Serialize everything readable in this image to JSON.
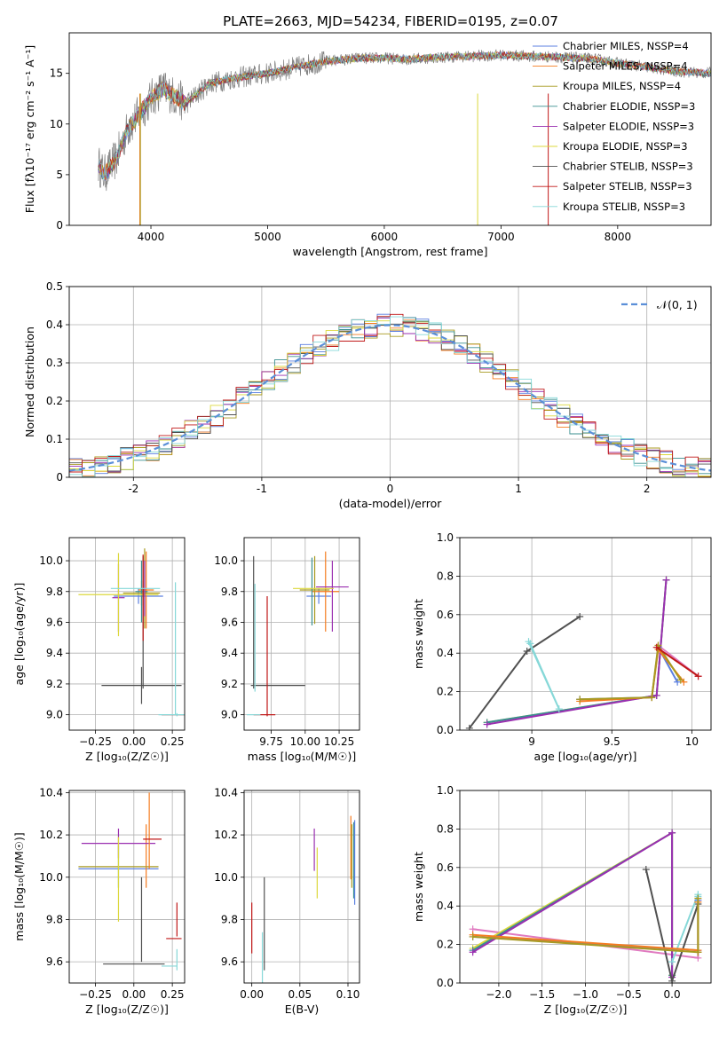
{
  "figure_title": "PLATE=2663, MJD=54234, FIBERID=0195, z=0.07",
  "colors": {
    "Chabrier MILES": "#5b7fe0",
    "Salpeter MILES": "#f57c20",
    "Kroupa MILES": "#a89a20",
    "Chabrier ELODIE": "#3a8f8f",
    "Salpeter ELODIE": "#9a2fb0",
    "Kroupa ELODIE": "#dcd83c",
    "Chabrier STELIB": "#505050",
    "Salpeter STELIB": "#c01818",
    "Kroupa STELIB": "#86d8d8",
    "grid": "#b0b0b0",
    "gauss": "#5b8fd8"
  },
  "chart_data": [
    {
      "id": "spectrum",
      "type": "line",
      "xlabel": "wavelength [Angstrom, rest frame]",
      "ylabel": "Flux [fλ10⁻¹⁷ erg cm⁻² s⁻¹ A⁻¹]",
      "xlim": [
        3300,
        8800
      ],
      "ylim": [
        0,
        19
      ],
      "xticks": [
        4000,
        5000,
        6000,
        7000,
        8000
      ],
      "yticks": [
        0,
        5,
        10,
        15
      ],
      "grid": false,
      "legend_position": "right",
      "legend": [
        "Chabrier MILES, NSSP=4",
        "Salpeter MILES, NSSP=4",
        "Kroupa MILES, NSSP=4",
        "Chabrier ELODIE, NSSP=3",
        "Salpeter ELODIE, NSSP=3",
        "Kroupa ELODIE, NSSP=3",
        "Chabrier STELIB, NSSP=3",
        "Salpeter STELIB, NSSP=3",
        "Kroupa STELIB, NSSP=3"
      ],
      "data_x": [
        3550,
        3600,
        3700,
        3800,
        3900,
        4000,
        4100,
        4300,
        4500,
        4700,
        5000,
        5200,
        5500,
        5800,
        6000,
        6200,
        6500,
        6800,
        7000,
        7200,
        7500,
        7800,
        8000,
        8200,
        8500,
        8800
      ],
      "data_y": [
        6.0,
        5.0,
        6.5,
        9.5,
        11.0,
        12.5,
        13.5,
        12.0,
        14.0,
        14.5,
        15.0,
        15.5,
        16.2,
        16.5,
        16.5,
        16.4,
        16.6,
        16.7,
        16.8,
        16.7,
        16.6,
        16.4,
        16.0,
        15.7,
        15.2,
        15.0
      ],
      "drops": [
        {
          "model": "Salpeter MILES",
          "x": 3905
        },
        {
          "model": "Kroupa MILES",
          "x": 3910
        },
        {
          "model": "Kroupa ELODIE",
          "x": 6800
        },
        {
          "model": "Salpeter STELIB",
          "x": 7405
        }
      ]
    },
    {
      "id": "residuals",
      "type": "line",
      "xlabel": "(data-model)/error",
      "ylabel": "Normed distribution",
      "xlim": [
        -2.5,
        2.5
      ],
      "ylim": [
        0,
        0.5
      ],
      "xticks": [
        -2,
        -1,
        0,
        1,
        2
      ],
      "yticks": [
        0.0,
        0.1,
        0.2,
        0.3,
        0.4,
        0.5
      ],
      "grid": true,
      "legend_position": "top-right",
      "legend": [
        "𝒩(0, 1)"
      ],
      "bin_width": 0.1
    },
    {
      "id": "age-z",
      "type": "scatter",
      "xlabel": "Z [log₁₀(Z/Z☉)]",
      "ylabel": "age  [log₁₀(age/yr)]",
      "xlim": [
        -0.42,
        0.33
      ],
      "ylim": [
        8.9,
        10.15
      ],
      "xticks": [
        -0.25,
        0.0,
        0.25
      ],
      "xtick_labels": [
        "−0.25",
        "0.00",
        "0.25"
      ],
      "yticks": [
        9.0,
        9.2,
        9.4,
        9.6,
        9.8,
        10.0
      ],
      "grid": true,
      "points": [
        {
          "model": "Chabrier MILES",
          "x": 0.03,
          "xerr": 0.16,
          "y": 9.77,
          "yerr": 0.05
        },
        {
          "model": "Salpeter MILES",
          "x": 0.08,
          "xerr": 0.05,
          "y": 9.81,
          "yerr": 0.25
        },
        {
          "model": "Kroupa MILES",
          "x": 0.05,
          "xerr": 0.12,
          "y": 9.79,
          "yerr": 0.08
        },
        {
          "model": "Chabrier ELODIE",
          "x": 0.05,
          "xerr": 0.04,
          "y": 9.8,
          "yerr": 0.2
        },
        {
          "model": "Salpeter ELODIE",
          "x": -0.1,
          "xerr": 0.04,
          "y": 9.76,
          "yerr": 0.22
        },
        {
          "model": "Kroupa ELODIE",
          "x": -0.1,
          "xerr": 0.26,
          "y": 9.78,
          "yerr": 0.27
        },
        {
          "model": "Chabrier STELIB",
          "x": 0.05,
          "xerr": 0.26,
          "y": 9.19,
          "yerr": 0.12
        },
        {
          "model": "Salpeter STELIB",
          "x": 0.28,
          "xerr": 0.1,
          "y": 9.0,
          "yerr": 0.0
        },
        {
          "model": "Kroupa STELIB",
          "x": 0.28,
          "xerr": 0.12,
          "y": 9.0,
          "yerr": 0.01
        },
        {
          "model": "Kroupa STELIB",
          "x": 0.27,
          "xerr": 0.0,
          "y": 9.43,
          "yerr": 0.43
        },
        {
          "model": "Chabrier STELIB",
          "x": 0.06,
          "xerr": 0.0,
          "y": 9.6,
          "yerr": 0.43
        },
        {
          "model": "Salpeter STELIB",
          "x": 0.06,
          "xerr": 0.0,
          "y": 9.76,
          "yerr": 0.28
        },
        {
          "model": "Kroupa MILES",
          "x": 0.07,
          "xerr": 0.0,
          "y": 9.82,
          "yerr": 0.26
        },
        {
          "model": "Salpeter ELODIE",
          "x": 0.07,
          "xerr": 0.0,
          "y": 9.82,
          "yerr": 0.18
        },
        {
          "model": "Kroupa ELODIE",
          "x": 0.18,
          "xerr": 0.0,
          "y": 9.83,
          "yerr": 0.0
        },
        {
          "model": "Kroupa STELIB",
          "x": 0.01,
          "xerr": 0.16,
          "y": 9.82,
          "yerr": 0.0
        }
      ]
    },
    {
      "id": "age-mass",
      "type": "scatter",
      "xlabel": "mass [log₁₀(M/M☉)]",
      "ylabel": "",
      "xlim": [
        9.55,
        10.4
      ],
      "ylim": [
        8.9,
        10.15
      ],
      "xticks": [
        9.75,
        10.0,
        10.25
      ],
      "xtick_labels": [
        "9.75",
        "10.00",
        "10.25"
      ],
      "yticks": [
        9.0,
        9.2,
        9.4,
        9.6,
        9.8,
        10.0
      ],
      "grid": true,
      "points": [
        {
          "model": "Chabrier MILES",
          "x": 10.1,
          "xerr": 0.09,
          "y": 9.77,
          "yerr": 0.05
        },
        {
          "model": "Salpeter MILES",
          "x": 10.15,
          "xerr": 0.1,
          "y": 9.8,
          "yerr": 0.26
        },
        {
          "model": "Kroupa MILES",
          "x": 10.07,
          "xerr": 0.11,
          "y": 9.81,
          "yerr": 0.22
        },
        {
          "model": "Chabrier ELODIE",
          "x": 10.05,
          "xerr": 0.0,
          "y": 9.8,
          "yerr": 0.22
        },
        {
          "model": "Salpeter ELODIE",
          "x": 10.2,
          "xerr": 0.0,
          "y": 9.77,
          "yerr": 0.23
        },
        {
          "model": "Kroupa ELODIE",
          "x": 10.06,
          "xerr": 0.15,
          "y": 9.82,
          "yerr": 0.0
        },
        {
          "model": "Chabrier STELIB",
          "x": 9.62,
          "xerr": 0.0,
          "y": 9.6,
          "yerr": 0.43
        },
        {
          "model": "Chabrier STELIB",
          "x": 9.8,
          "xerr": 0.2,
          "y": 9.19,
          "yerr": 0.0
        },
        {
          "model": "Salpeter STELIB",
          "x": 9.72,
          "xerr": 0.0,
          "y": 9.38,
          "yerr": 0.39
        },
        {
          "model": "Salpeter STELIB",
          "x": 9.7,
          "xerr": 0.08,
          "y": 9.0,
          "yerr": 0.0
        },
        {
          "model": "Kroupa STELIB",
          "x": 9.62,
          "xerr": 0.05,
          "y": 9.0,
          "yerr": 0.0
        },
        {
          "model": "Kroupa STELIB",
          "x": 9.63,
          "xerr": 0.0,
          "y": 9.5,
          "yerr": 0.35
        },
        {
          "model": "Salpeter ELODIE",
          "x": 10.2,
          "xerr": 0.12,
          "y": 9.83,
          "yerr": 0.0
        }
      ]
    },
    {
      "id": "mass-weight-age",
      "type": "line",
      "xlabel": "age  [log₁₀(age/yr)]",
      "ylabel": "mass weight",
      "xlim": [
        8.55,
        10.12
      ],
      "ylim": [
        0,
        1
      ],
      "xticks": [
        9.0,
        9.5,
        10.0
      ],
      "yticks": [
        0.0,
        0.2,
        0.4,
        0.6,
        0.8,
        1.0
      ],
      "grid": true,
      "series": [
        {
          "model": "Chabrier STELIB",
          "x": [
            8.61,
            8.97,
            9.3
          ],
          "y": [
            0.01,
            0.41,
            0.59
          ]
        },
        {
          "model": "Kroupa ELODIE",
          "x": [
            8.72,
            9.78,
            9.84
          ],
          "y": [
            0.04,
            0.18,
            0.78
          ]
        },
        {
          "model": "Chabrier ELODIE",
          "x": [
            8.72,
            9.78,
            9.84
          ],
          "y": [
            0.04,
            0.18,
            0.78
          ]
        },
        {
          "model": "Salpeter ELODIE",
          "x": [
            8.72,
            9.78,
            9.84
          ],
          "y": [
            0.03,
            0.18,
            0.78
          ]
        },
        {
          "model": "Kroupa STELIB",
          "x": [
            8.98,
            9.17,
            8.99
          ],
          "y": [
            0.46,
            0.11,
            0.45
          ]
        },
        {
          "model": "Chabrier MILES",
          "x": [
            9.3,
            9.75,
            9.79,
            9.91
          ],
          "y": [
            0.16,
            0.17,
            0.43,
            0.25
          ]
        },
        {
          "model": "Salpeter MILES",
          "x": [
            9.3,
            9.75,
            9.79,
            9.95
          ],
          "y": [
            0.15,
            0.17,
            0.42,
            0.25
          ]
        },
        {
          "model": "Kroupa MILES",
          "x": [
            9.3,
            9.75,
            9.79,
            9.93
          ],
          "y": [
            0.16,
            0.17,
            0.44,
            0.26
          ]
        },
        {
          "model": "Salpeter STELIB",
          "x": [
            9.78,
            10.04
          ],
          "y": [
            0.43,
            0.28
          ]
        }
      ],
      "extra_pink": {
        "x": [
          9.79,
          10.04
        ],
        "y": [
          0.44,
          0.28
        ]
      }
    },
    {
      "id": "mass-z",
      "type": "scatter",
      "xlabel": "Z [log₁₀(Z/Z☉)]",
      "ylabel": "mass [log₁₀(M/M☉)]",
      "xlim": [
        -0.42,
        0.33
      ],
      "ylim": [
        9.5,
        10.41
      ],
      "xticks": [
        -0.25,
        0.0,
        0.25
      ],
      "xtick_labels": [
        "−0.25",
        "0.00",
        "0.25"
      ],
      "yticks": [
        9.6,
        9.8,
        10.0,
        10.2,
        10.4
      ],
      "grid": true,
      "points": [
        {
          "model": "Chabrier MILES",
          "x": -0.1,
          "xerr": 0.26,
          "y": 10.04,
          "yerr": 0.0
        },
        {
          "model": "Salpeter MILES",
          "x": 0.08,
          "xerr": 0.0,
          "y": 10.1,
          "yerr": 0.15
        },
        {
          "model": "Kroupa MILES",
          "x": -0.1,
          "xerr": 0.26,
          "y": 10.05,
          "yerr": 0.0
        },
        {
          "model": "Chabrier ELODIE",
          "x": -0.1,
          "xerr": 0.0,
          "y": 10.05,
          "yerr": 0.1
        },
        {
          "model": "Salpeter ELODIE",
          "x": -0.1,
          "xerr": 0.24,
          "y": 10.16,
          "yerr": 0.07
        },
        {
          "model": "Kroupa ELODIE",
          "x": -0.1,
          "xerr": 0.0,
          "y": 9.99,
          "yerr": 0.2
        },
        {
          "model": "Chabrier STELIB",
          "x": 0.05,
          "xerr": 0.0,
          "y": 9.8,
          "yerr": 0.2
        },
        {
          "model": "Chabrier STELIB",
          "x": 0.0,
          "xerr": 0.2,
          "y": 9.59,
          "yerr": 0.0
        },
        {
          "model": "Salpeter STELIB",
          "x": 0.28,
          "xerr": 0.0,
          "y": 9.8,
          "yerr": 0.08
        },
        {
          "model": "Salpeter STELIB",
          "x": 0.26,
          "xerr": 0.05,
          "y": 9.71,
          "yerr": 0.0
        },
        {
          "model": "Kroupa STELIB",
          "x": 0.28,
          "xerr": 0.0,
          "y": 9.61,
          "yerr": 0.05
        },
        {
          "model": "Kroupa STELIB",
          "x": 0.23,
          "xerr": 0.05,
          "y": 9.58,
          "yerr": 0.0
        },
        {
          "model": "Salpeter MILES",
          "x": 0.1,
          "xerr": 0.0,
          "y": 10.22,
          "yerr": 0.18
        },
        {
          "model": "Salpeter STELIB",
          "x": 0.12,
          "xerr": 0.06,
          "y": 10.18,
          "yerr": 0.0
        }
      ]
    },
    {
      "id": "mass-ebv",
      "type": "scatter",
      "xlabel": "E(B-V)",
      "ylabel": "",
      "xlim": [
        -0.008,
        0.112
      ],
      "ylim": [
        9.5,
        10.41
      ],
      "xticks": [
        0.0,
        0.05,
        0.1
      ],
      "xtick_labels": [
        "0.00",
        "0.05",
        "0.10"
      ],
      "yticks": [
        9.6,
        9.8,
        10.0,
        10.2,
        10.4
      ],
      "grid": true,
      "points": [
        {
          "model": "Salpeter STELIB",
          "x": 0.0,
          "y": 9.76,
          "yerr": 0.12
        },
        {
          "model": "Kroupa STELIB",
          "x": 0.011,
          "y": 9.6,
          "yerr": 0.14
        },
        {
          "model": "Chabrier STELIB",
          "x": 0.013,
          "y": 9.78,
          "yerr": 0.22
        },
        {
          "model": "Salpeter ELODIE",
          "x": 0.065,
          "y": 10.13,
          "yerr": 0.1
        },
        {
          "model": "Kroupa ELODIE",
          "x": 0.068,
          "y": 10.02,
          "yerr": 0.12
        },
        {
          "model": "Salpeter MILES",
          "x": 0.103,
          "y": 10.14,
          "yerr": 0.15
        },
        {
          "model": "Kroupa MILES",
          "x": 0.104,
          "y": 10.1,
          "yerr": 0.15
        },
        {
          "model": "Chabrier ELODIE",
          "x": 0.106,
          "y": 10.08,
          "yerr": 0.18
        },
        {
          "model": "Chabrier MILES",
          "x": 0.107,
          "y": 10.07,
          "yerr": 0.2
        }
      ]
    },
    {
      "id": "mass-weight-z",
      "type": "line",
      "xlabel": "Z [log₁₀(Z/Z☉)]",
      "ylabel": "mass weight",
      "xlim": [
        -2.45,
        0.45
      ],
      "ylim": [
        0,
        1
      ],
      "xticks": [
        -2.0,
        -1.5,
        -1.0,
        -0.5,
        0.0
      ],
      "xtick_labels": [
        "−2.0",
        "−1.5",
        "−1.0",
        "−0.5",
        "0.0"
      ],
      "yticks": [
        0.0,
        0.2,
        0.4,
        0.6,
        0.8,
        1.0
      ],
      "grid": true,
      "series": [
        {
          "model": "Kroupa ELODIE",
          "x": [
            -2.3,
            0.0,
            0.0
          ],
          "y": [
            0.18,
            0.78,
            0.04
          ]
        },
        {
          "model": "Chabrier ELODIE",
          "x": [
            -2.3,
            0.0,
            0.0
          ],
          "y": [
            0.17,
            0.78,
            0.04
          ]
        },
        {
          "model": "Salpeter ELODIE",
          "x": [
            -2.3,
            0.0,
            0.0
          ],
          "y": [
            0.16,
            0.78,
            0.03
          ]
        },
        {
          "model": "Chabrier STELIB",
          "x": [
            -0.3,
            0.0,
            0.3
          ],
          "y": [
            0.59,
            0.01,
            0.41
          ]
        },
        {
          "model": "Kroupa STELIB",
          "x": [
            0.0,
            0.3,
            0.3
          ],
          "y": [
            0.11,
            0.46,
            0.45
          ]
        },
        {
          "model": "Chabrier MILES",
          "x": [
            -2.3,
            0.3,
            0.3,
            0.3
          ],
          "y": [
            0.24,
            0.17,
            0.43,
            0.16
          ]
        },
        {
          "model": "Salpeter MILES",
          "x": [
            -2.3,
            0.3,
            0.3,
            0.3
          ],
          "y": [
            0.25,
            0.17,
            0.42,
            0.16
          ]
        },
        {
          "model": "Kroupa MILES",
          "x": [
            -2.3,
            0.3,
            0.3
          ],
          "y": [
            0.24,
            0.16,
            0.44
          ]
        }
      ],
      "extra_pink": {
        "x": [
          -2.3,
          0.3,
          0.3
        ],
        "y": [
          0.28,
          0.13,
          0.43
        ]
      }
    }
  ]
}
